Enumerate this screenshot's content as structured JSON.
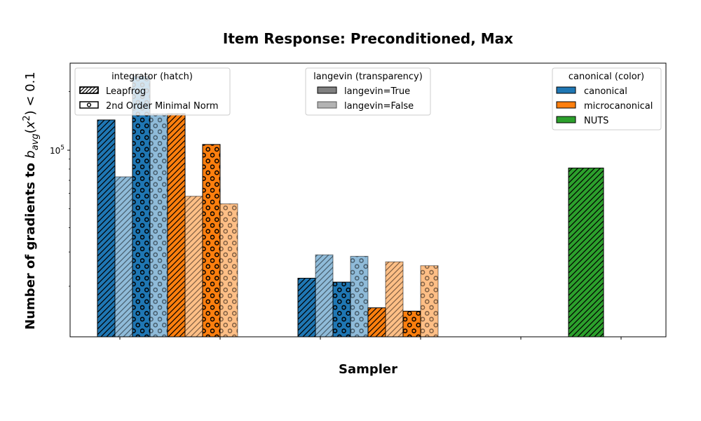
{
  "chart_data": {
    "type": "bar",
    "title": "Item Response: Preconditioned, Max",
    "xlabel": "Sampler",
    "ylabel": "Number of gradients to b_avg(x^2) < 0.1",
    "yscale": "log",
    "ylim": [
      11000,
      280000
    ],
    "yticks": [
      {
        "value": 100000,
        "base": "10",
        "exp": "5"
      }
    ],
    "grid": false,
    "groups": 3,
    "bars": [
      {
        "group": 0,
        "slot": 0,
        "color": "canonical",
        "integrator": "Leapfrog",
        "langevin": true,
        "value": 143000
      },
      {
        "group": 0,
        "slot": 1,
        "color": "canonical",
        "integrator": "Leapfrog",
        "langevin": false,
        "value": 73000
      },
      {
        "group": 0,
        "slot": 2,
        "color": "canonical",
        "integrator": "2nd Order Minimal Norm",
        "langevin": true,
        "value": 240000
      },
      {
        "group": 0,
        "slot": 3,
        "color": "canonical",
        "integrator": "2nd Order Minimal Norm",
        "langevin": false,
        "value": 154000
      },
      {
        "group": 0,
        "slot": 4,
        "color": "microcanonical",
        "integrator": "Leapfrog",
        "langevin": true,
        "value": 154000
      },
      {
        "group": 0,
        "slot": 5,
        "color": "microcanonical",
        "integrator": "Leapfrog",
        "langevin": false,
        "value": 58000
      },
      {
        "group": 0,
        "slot": 6,
        "color": "microcanonical",
        "integrator": "2nd Order Minimal Norm",
        "langevin": true,
        "value": 107000
      },
      {
        "group": 0,
        "slot": 7,
        "color": "microcanonical",
        "integrator": "2nd Order Minimal Norm",
        "langevin": false,
        "value": 53000
      },
      {
        "group": 1,
        "slot": 0,
        "color": "canonical",
        "integrator": "Leapfrog",
        "langevin": true,
        "value": 22000
      },
      {
        "group": 1,
        "slot": 1,
        "color": "canonical",
        "integrator": "Leapfrog",
        "langevin": false,
        "value": 29000
      },
      {
        "group": 1,
        "slot": 2,
        "color": "canonical",
        "integrator": "2nd Order Minimal Norm",
        "langevin": true,
        "value": 21000
      },
      {
        "group": 1,
        "slot": 3,
        "color": "canonical",
        "integrator": "2nd Order Minimal Norm",
        "langevin": false,
        "value": 28500
      },
      {
        "group": 1,
        "slot": 4,
        "color": "microcanonical",
        "integrator": "Leapfrog",
        "langevin": true,
        "value": 15500
      },
      {
        "group": 1,
        "slot": 5,
        "color": "microcanonical",
        "integrator": "Leapfrog",
        "langevin": false,
        "value": 26700
      },
      {
        "group": 1,
        "slot": 6,
        "color": "microcanonical",
        "integrator": "2nd Order Minimal Norm",
        "langevin": true,
        "value": 14900
      },
      {
        "group": 1,
        "slot": 7,
        "color": "microcanonical",
        "integrator": "2nd Order Minimal Norm",
        "langevin": false,
        "value": 25500
      },
      {
        "group": 2,
        "slot": 0,
        "color": "NUTS",
        "integrator": "Leapfrog",
        "langevin": true,
        "value": 81000
      }
    ],
    "colors": {
      "canonical": "#1f77b4",
      "microcanonical": "#ff7f0e",
      "NUTS": "#2ca02c"
    },
    "legends": [
      {
        "title": "integrator (hatch)",
        "entries": [
          {
            "label": "Leapfrog",
            "swatch": "hatch-leapfrog"
          },
          {
            "label": "2nd Order Minimal Norm",
            "swatch": "hatch-circles"
          }
        ]
      },
      {
        "title": "langevin (transparency)",
        "entries": [
          {
            "label": "langevin=True",
            "swatch": "dark-gray"
          },
          {
            "label": "langevin=False",
            "swatch": "light-gray"
          }
        ]
      },
      {
        "title": "canonical (color)",
        "entries": [
          {
            "label": "canonical",
            "swatch": "#1f77b4"
          },
          {
            "label": "microcanonical",
            "swatch": "#ff7f0e"
          },
          {
            "label": "NUTS",
            "swatch": "#2ca02c"
          }
        ]
      }
    ],
    "legend_placement": [
      "top-left",
      "top-center",
      "top-right"
    ]
  }
}
